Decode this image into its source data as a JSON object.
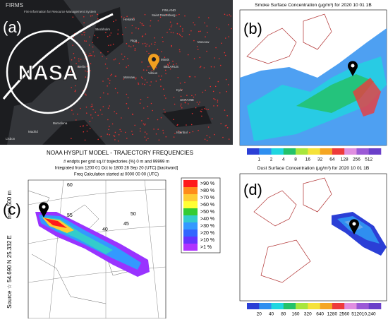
{
  "panel_a": {
    "label": "(a)",
    "brand": "FIRMS",
    "brand_subtitle": "Fire Information for Resource Management System",
    "logo_text": "NASA",
    "cities": [
      "Helsinki",
      "Saint Petersburg",
      "Stockholm",
      "Riga",
      "Vilnius",
      "Minsk",
      "Moscow",
      "Warsaw",
      "Kyiv",
      "Berlin",
      "Madrid",
      "Barcelona",
      "Lisbon",
      "Istanbul",
      "FINLAND",
      "BELARUS",
      "UKRAINE"
    ]
  },
  "panel_b": {
    "label": "(b)",
    "title": "Smoke Surface Concentration (μg/m³) for 2020 10 01 1B",
    "colorbar": {
      "labels": [
        "1",
        "2",
        "4",
        "8",
        "16",
        "32",
        "64",
        "128",
        "256",
        "512"
      ],
      "colors": [
        "#2b3fd6",
        "#2f8ff0",
        "#1fd6e0",
        "#23c26a",
        "#a8e63c",
        "#f5e23a",
        "#f5a623",
        "#ee3b3b",
        "#e08fe0",
        "#9b59d6",
        "#6a3fc9"
      ]
    }
  },
  "panel_c": {
    "label": "(c)",
    "title": "NOAA HYSPLIT MODEL - TRAJECTORY FREQUENCIES",
    "lines": [
      "# endpts per grid sq./# trajectories (%)    0 m and 99999 m",
      "Integrated from 1200 01 Oct to 1800 28 Sep 20 (UTC) [backward]",
      "Freq Calculation started at 0000 00    00 (UTC)"
    ],
    "side_top": "from 500 m",
    "side_bottom": "Source ☆ 54.690 N 25.332 E",
    "grid_labels": [
      "60",
      "55",
      "50",
      "40",
      "45"
    ],
    "legend": {
      "labels": [
        ">90 %",
        ">80 %",
        ">70 %",
        ">60 %",
        ">50 %",
        ">40 %",
        ">30 %",
        ">20 %",
        ">10 %",
        ">1 %"
      ],
      "colors": [
        "#ff1a1a",
        "#ff8c1a",
        "#ffcc33",
        "#ffff33",
        "#33cc33",
        "#33cccc",
        "#3399ff",
        "#3366ff",
        "#6633ff",
        "#b033ff"
      ]
    }
  },
  "panel_d": {
    "label": "(d)",
    "title": "Dust Surface Concentration (μg/m³) for 2020 10 01 1B",
    "colorbar": {
      "labels": [
        "20",
        "40",
        "80",
        "160",
        "320",
        "640",
        "1280",
        "2560",
        "5120",
        "10,240"
      ],
      "colors": [
        "#2b3fd6",
        "#2f8ff0",
        "#1fd6e0",
        "#23c26a",
        "#a8e63c",
        "#f5e23a",
        "#f5a623",
        "#ee3b3b",
        "#e08fe0",
        "#9b59d6",
        "#6a3fc9"
      ]
    }
  }
}
